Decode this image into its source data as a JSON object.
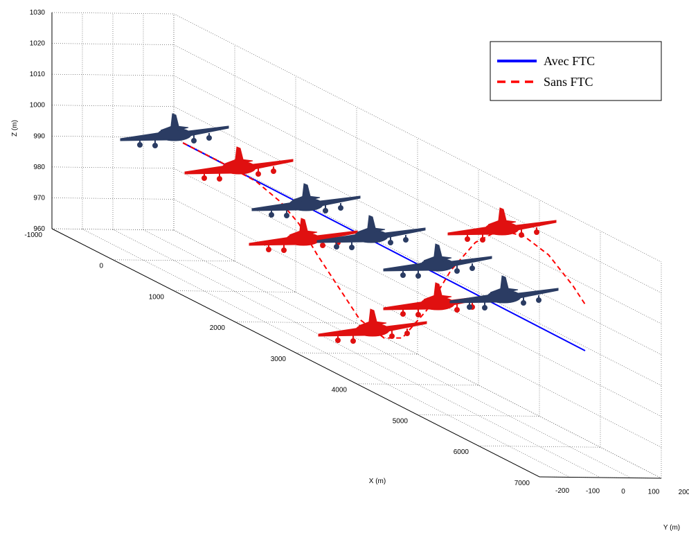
{
  "chart_data": {
    "type": "line3d",
    "xlabel": "X (m)",
    "ylabel": "Y (m)",
    "zlabel": "Z (m)",
    "xlim": [
      -1000,
      7000
    ],
    "ylim": [
      -200,
      200
    ],
    "zlim": [
      960,
      1030
    ],
    "xticks": [
      -1000,
      0,
      1000,
      2000,
      3000,
      4000,
      5000,
      6000,
      7000
    ],
    "yticks": [
      -200,
      -100,
      0,
      100,
      200
    ],
    "zticks": [
      960,
      970,
      980,
      990,
      1000,
      1010,
      1020,
      1030
    ],
    "grid": true,
    "legend": "upper right",
    "series": [
      {
        "name": "Avec FTC",
        "color": "#0000ff",
        "style": "solid",
        "x": [
          400,
          7000
        ],
        "y": [
          -50,
          -50
        ],
        "z": [
          1002,
          1001
        ]
      },
      {
        "name": "Sans FTC",
        "color": "#ff0000",
        "style": "dashed",
        "x": [
          400,
          1000,
          1600,
          2000,
          2300,
          2600,
          3000,
          3300,
          3700,
          4000,
          4400,
          4800,
          5200,
          5600,
          6000,
          6400,
          6800,
          7000
        ],
        "y": [
          -50,
          -50,
          -50,
          -50,
          -50,
          -50,
          -50,
          -50,
          -50,
          -50,
          -50,
          -50,
          -50,
          -50,
          -50,
          -50,
          -50,
          -50
        ],
        "z": [
          1002,
          1002,
          1001.6,
          999,
          995,
          988,
          980,
          974,
          972,
          975,
          988,
          1005,
          1018,
          1026,
          1028,
          1026,
          1020,
          1016
        ]
      }
    ]
  }
}
